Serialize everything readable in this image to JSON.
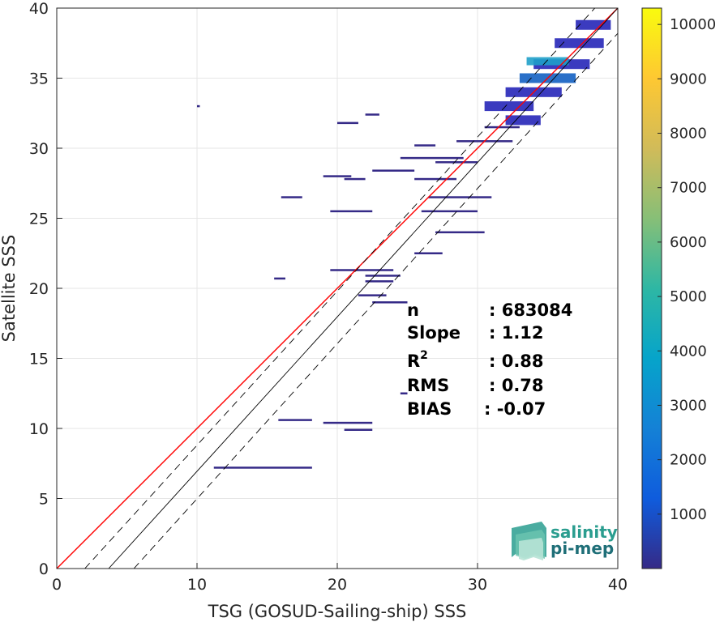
{
  "chart_data": {
    "type": "heatmap",
    "xlabel": "TSG (GOSUD-Sailing-ship) SSS",
    "ylabel": "Satellite SSS",
    "xlim": [
      0,
      40
    ],
    "ylim": [
      0,
      40
    ],
    "xticks": [
      "0",
      "10",
      "20",
      "30",
      "40"
    ],
    "yticks": [
      "0",
      "5",
      "10",
      "15",
      "20",
      "25",
      "30",
      "35",
      "40"
    ],
    "grid": true,
    "colorbar": {
      "ticks": [
        "1000",
        "2000",
        "3000",
        "4000",
        "5000",
        "6000",
        "7000",
        "8000",
        "9000",
        "10000"
      ],
      "min": 0,
      "max": 10300,
      "colormap": [
        "#352a87",
        "#0f5cdd",
        "#1481d6",
        "#06a4ca",
        "#2eb7a4",
        "#87bf77",
        "#d1bb59",
        "#fec832",
        "#f9fb0e"
      ]
    },
    "lines": [
      {
        "name": "one-to-one",
        "color": "#ff0000",
        "points": [
          [
            0,
            0
          ],
          [
            40,
            40
          ]
        ]
      },
      {
        "name": "regression",
        "color": "#000000",
        "style": "solid",
        "points": [
          [
            3.7,
            0
          ],
          [
            40,
            40
          ]
        ]
      },
      {
        "name": "regression-upper",
        "color": "#000000",
        "style": "dashed",
        "points": [
          [
            2.0,
            0
          ],
          [
            40,
            41.8
          ]
        ]
      },
      {
        "name": "regression-lower",
        "color": "#000000",
        "style": "dashed",
        "points": [
          [
            5.5,
            0
          ],
          [
            40,
            38.2
          ]
        ]
      }
    ],
    "density_segments": [
      {
        "x": [
          16.0,
          17.5
        ],
        "y": 26.5,
        "level": 1
      },
      {
        "x": [
          19.5,
          22.5
        ],
        "y": 25.5,
        "level": 1
      },
      {
        "x": [
          19.0,
          21.0
        ],
        "y": 28.0,
        "level": 1
      },
      {
        "x": [
          20.5,
          22.0
        ],
        "y": 27.8,
        "level": 1
      },
      {
        "x": [
          22.5,
          25.5
        ],
        "y": 28.4,
        "level": 1
      },
      {
        "x": [
          24.5,
          29.0
        ],
        "y": 29.3,
        "level": 1
      },
      {
        "x": [
          25.5,
          27.0
        ],
        "y": 30.2,
        "level": 1
      },
      {
        "x": [
          20.0,
          21.5
        ],
        "y": 31.8,
        "level": 1
      },
      {
        "x": [
          22.0,
          23.0
        ],
        "y": 32.4,
        "level": 1
      },
      {
        "x": [
          19.5,
          24.0
        ],
        "y": 21.3,
        "level": 1
      },
      {
        "x": [
          15.5,
          16.3
        ],
        "y": 20.7,
        "level": 1
      },
      {
        "x": [
          22.0,
          24.5
        ],
        "y": 20.9,
        "level": 1
      },
      {
        "x": [
          25.5,
          28.5
        ],
        "y": 27.8,
        "level": 1
      },
      {
        "x": [
          26.0,
          30.0
        ],
        "y": 25.5,
        "level": 1
      },
      {
        "x": [
          27.0,
          30.5
        ],
        "y": 24.0,
        "level": 1
      },
      {
        "x": [
          25.5,
          27.5
        ],
        "y": 22.5,
        "level": 1
      },
      {
        "x": [
          26.5,
          31.0
        ],
        "y": 26.5,
        "level": 1
      },
      {
        "x": [
          22.0,
          24.0
        ],
        "y": 20.5,
        "level": 1
      },
      {
        "x": [
          21.5,
          23.5
        ],
        "y": 19.5,
        "level": 1
      },
      {
        "x": [
          22.5,
          25.0
        ],
        "y": 19.0,
        "level": 1
      },
      {
        "x": [
          15.8,
          18.2
        ],
        "y": 10.6,
        "level": 1
      },
      {
        "x": [
          19.0,
          22.5
        ],
        "y": 10.4,
        "level": 1
      },
      {
        "x": [
          20.5,
          22.5
        ],
        "y": 9.9,
        "level": 1
      },
      {
        "x": [
          11.2,
          18.2
        ],
        "y": 7.2,
        "level": 1
      },
      {
        "x": [
          24.5,
          25.0
        ],
        "y": 12.5,
        "level": 1
      },
      {
        "x": [
          10.0,
          10.2
        ],
        "y": 33.0,
        "level": 1
      },
      {
        "x": [
          30.5,
          33.0
        ],
        "y": 31.5,
        "level": 1
      },
      {
        "x": [
          28.5,
          32.5
        ],
        "y": 30.5,
        "level": 1
      },
      {
        "x": [
          27.0,
          30.0
        ],
        "y": 29.0,
        "level": 1
      },
      {
        "x": [
          30.5,
          34.0
        ],
        "y": 33.0,
        "level": 2
      },
      {
        "x": [
          32.0,
          36.0
        ],
        "y": 34.0,
        "level": 2
      },
      {
        "x": [
          33.0,
          37.0
        ],
        "y": 35.0,
        "level": 3
      },
      {
        "x": [
          34.0,
          38.0
        ],
        "y": 36.0,
        "level": 2
      },
      {
        "x": [
          35.5,
          39.0
        ],
        "y": 37.5,
        "level": 2
      },
      {
        "x": [
          37.0,
          39.5
        ],
        "y": 38.8,
        "level": 2
      },
      {
        "x": [
          32.0,
          34.5
        ],
        "y": 32.0,
        "level": 2
      }
    ]
  },
  "stats": {
    "labels": [
      "n",
      "Slope",
      "R",
      "RMS",
      "BIAS"
    ],
    "r_superscript": "2",
    "values": [
      ": 683084",
      ": 1.12",
      ": 0.88",
      ": 0.78",
      ": -0.07"
    ]
  },
  "logo": {
    "line1": "salinity",
    "line2": "pi-mep"
  }
}
